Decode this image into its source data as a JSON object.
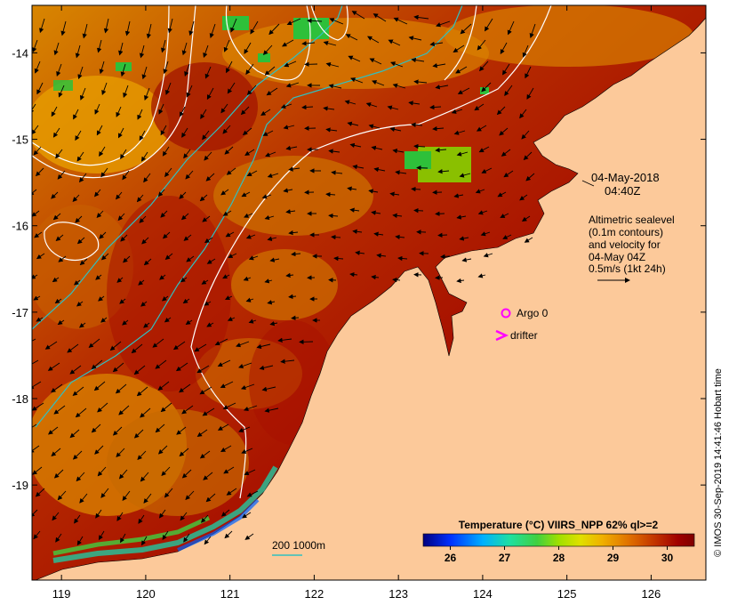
{
  "map": {
    "x_ticks": [
      "119",
      "120",
      "121",
      "122",
      "123",
      "124",
      "125",
      "126"
    ],
    "y_ticks": [
      "-14",
      "-15",
      "-16",
      "-17",
      "-18",
      "-19"
    ],
    "x_tick_values": [
      119,
      120,
      121,
      122,
      123,
      124,
      125,
      126
    ],
    "y_tick_values": [
      -14,
      -15,
      -16,
      -17,
      -18,
      -19
    ],
    "lon_range": [
      118.65,
      126.65
    ],
    "lat_range": [
      -20.1,
      -13.45
    ],
    "colors": {
      "land": "#fcc99a",
      "sst_warm": "#a81000",
      "sst_mid": "#e88a00",
      "sst_cool": "#d8d000",
      "sst_green": "#2ec03a",
      "contour": "#ffffff",
      "isobath": "#30c0c0",
      "marker": "#ff00ff"
    }
  },
  "annotations": {
    "date": "04-May-2018",
    "time": "04:40Z",
    "altimetry": [
      "Altimetric sealevel",
      "(0.1m contours)",
      "and velocity for",
      "04-May 04Z"
    ],
    "scale_label": "0.5m/s (1kt 24h)",
    "argo_label": "Argo 0",
    "drifter_label": "drifter",
    "isobath_label": "200  1000m"
  },
  "colorbar": {
    "title": "Temperature (°C) VIIRS_NPP 62% ql>=2",
    "ticks": [
      "26",
      "27",
      "28",
      "29",
      "30"
    ],
    "tick_values": [
      26,
      27,
      28,
      29,
      30
    ],
    "range": [
      25.5,
      30.5
    ],
    "stops": [
      "#00007f",
      "#0030ff",
      "#00b0ff",
      "#20e0a0",
      "#40d040",
      "#a0e000",
      "#e0e000",
      "#f0b000",
      "#e07000",
      "#c03000",
      "#a00000",
      "#800000"
    ]
  },
  "credit": "© IMOS 30-Sep-2019 14:41:46 Hobart time"
}
